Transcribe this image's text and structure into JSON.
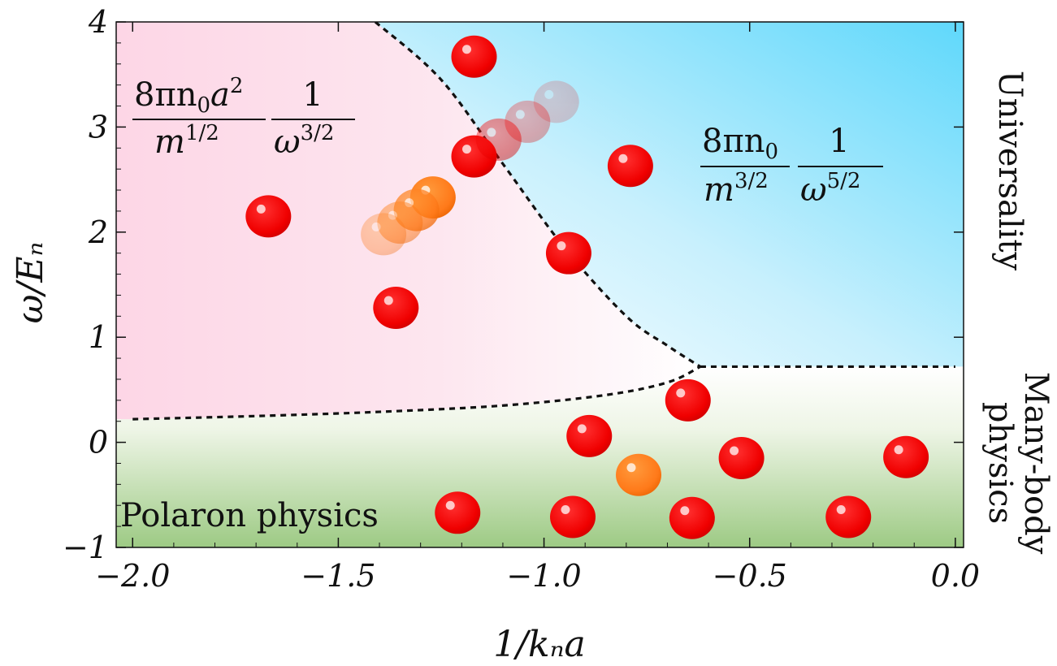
{
  "chart_data": {
    "type": "scatter",
    "title": "",
    "xlabel": "1/kₙa",
    "ylabel": "ω/Eₙ",
    "xlim": [
      -2.04,
      0.02
    ],
    "ylim": [
      -1.0,
      4.0
    ],
    "xticks": [
      -2.0,
      -1.5,
      -1.0,
      -0.5,
      0.0
    ],
    "xtick_labels": [
      "−2.0",
      "−1.5",
      "−1.0",
      "−0.5",
      "0.0"
    ],
    "yticks": [
      -1,
      0,
      1,
      2,
      3,
      4
    ],
    "ytick_labels": [
      "−1",
      "0",
      "1",
      "2",
      "3",
      "4"
    ],
    "colors": {
      "red_marker": "#f00000",
      "orange_marker": "#ff7a1a",
      "pink_region": "#fdd6e6",
      "blue_region": "#5fd8fb",
      "green_region": "#9dca84",
      "boundary": "#111111"
    },
    "boundaries": {
      "upper_x": [
        -1.41,
        -1.25,
        -1.1,
        -0.95,
        -0.8,
        -0.7,
        -0.62
      ],
      "upper_y": [
        4.0,
        3.45,
        2.65,
        1.85,
        1.2,
        0.92,
        0.72
      ],
      "lower_x": [
        -2.0,
        -1.7,
        -1.4,
        -1.1,
        -0.85,
        -0.7,
        -0.62
      ],
      "lower_y": [
        0.22,
        0.25,
        0.29,
        0.35,
        0.45,
        0.57,
        0.72
      ],
      "right_x": [
        -0.62,
        0.0
      ],
      "right_y": [
        0.72,
        0.72
      ]
    },
    "series": [
      {
        "name": "red points",
        "color": "red",
        "x": [
          -1.17,
          -1.17,
          -0.79,
          -1.67,
          -0.94,
          -1.36,
          -0.65,
          -0.89,
          -0.52,
          -0.12,
          -1.21,
          -0.93,
          -0.64,
          -0.26
        ],
        "y": [
          3.67,
          2.72,
          2.63,
          2.15,
          1.8,
          1.28,
          0.4,
          0.06,
          -0.15,
          -0.14,
          -0.67,
          -0.71,
          -0.72,
          -0.71
        ]
      },
      {
        "name": "orange points",
        "color": "orange",
        "x": [
          -1.27,
          -0.77
        ],
        "y": [
          2.33,
          -0.31
        ]
      },
      {
        "name": "orange trail (faded)",
        "color": "orange",
        "x": [
          -1.31,
          -1.35,
          -1.39
        ],
        "y": [
          2.21,
          2.09,
          1.98
        ],
        "opacity": [
          0.75,
          0.5,
          0.35
        ]
      },
      {
        "name": "red trail (faded)",
        "color": "red",
        "x": [
          -1.11,
          -1.04,
          -0.97
        ],
        "y": [
          2.88,
          3.05,
          3.24
        ],
        "opacity": [
          0.45,
          0.3,
          0.18
        ]
      }
    ],
    "annotations": {
      "polaron": "Polaron physics",
      "universality": "Universality",
      "many_body_line1": "Many-body",
      "many_body_line2": "physics",
      "formula_left": {
        "num_a": "8πn",
        "num_sub": "0",
        "num_b": "a",
        "num_sup": "2",
        "den_base": "m",
        "den_sup": "1/2",
        "num2": "1",
        "den2_base": "ω",
        "den2_sup": "3/2"
      },
      "formula_right": {
        "num_a": "8πn",
        "num_sub": "0",
        "den_base": "m",
        "den_sup": "3/2",
        "num2": "1",
        "den2_base": "ω",
        "den2_sup": "5/2"
      }
    }
  }
}
